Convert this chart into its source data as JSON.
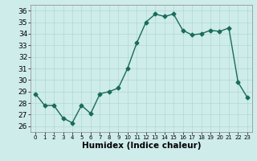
{
  "x": [
    0,
    1,
    2,
    3,
    4,
    5,
    6,
    7,
    8,
    9,
    10,
    11,
    12,
    13,
    14,
    15,
    16,
    17,
    18,
    19,
    20,
    21,
    22,
    23
  ],
  "y": [
    28.8,
    27.8,
    27.8,
    26.7,
    26.3,
    27.8,
    27.1,
    28.8,
    29.0,
    29.3,
    31.0,
    33.2,
    35.0,
    35.7,
    35.5,
    35.7,
    34.3,
    33.9,
    34.0,
    34.3,
    34.2,
    34.5,
    29.8,
    28.5
  ],
  "xlabel": "Humidex (Indice chaleur)",
  "xlim": [
    -0.5,
    23.5
  ],
  "ylim": [
    25.5,
    36.5
  ],
  "yticks": [
    26,
    27,
    28,
    29,
    30,
    31,
    32,
    33,
    34,
    35,
    36
  ],
  "xticks": [
    0,
    1,
    2,
    3,
    4,
    5,
    6,
    7,
    8,
    9,
    10,
    11,
    12,
    13,
    14,
    15,
    16,
    17,
    18,
    19,
    20,
    21,
    22,
    23
  ],
  "line_color": "#1a6b5a",
  "marker": "D",
  "marker_size": 2.5,
  "bg_color": "#ceecea",
  "grid_color": "#b0d8d4",
  "tick_label_fontsize": 6.5,
  "xlabel_fontsize": 7.5,
  "line_width": 1.0
}
